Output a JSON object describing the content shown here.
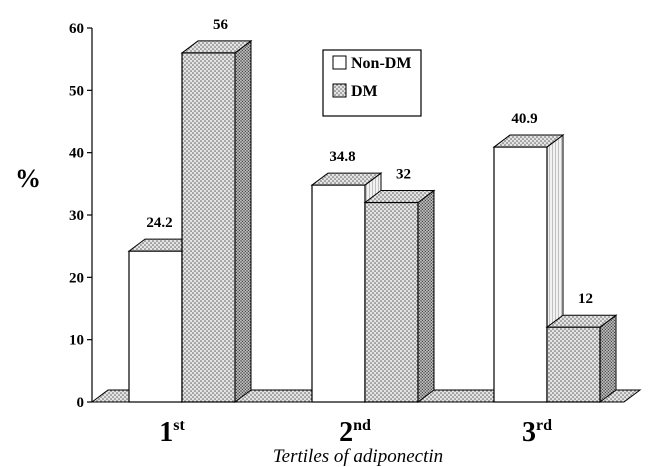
{
  "chart_data": {
    "type": "bar",
    "title": "",
    "ylabel": "%",
    "xlabel": "Tertiles of adiponectin",
    "ylim": [
      0,
      60
    ],
    "yticks": [
      0,
      10,
      20,
      30,
      40,
      50,
      60
    ],
    "categories": [
      {
        "base": "1",
        "sup": "st"
      },
      {
        "base": "2",
        "sup": "nd"
      },
      {
        "base": "3",
        "sup": "rd"
      }
    ],
    "series": [
      {
        "name": "Non-DM",
        "values": [
          24.2,
          34.8,
          40.9
        ],
        "color": "#ffffff"
      },
      {
        "name": "DM",
        "values": [
          56,
          32,
          12
        ],
        "color": "#c9c9c9"
      }
    ],
    "legend_position": "top-center",
    "grid": false,
    "three_d": true
  }
}
